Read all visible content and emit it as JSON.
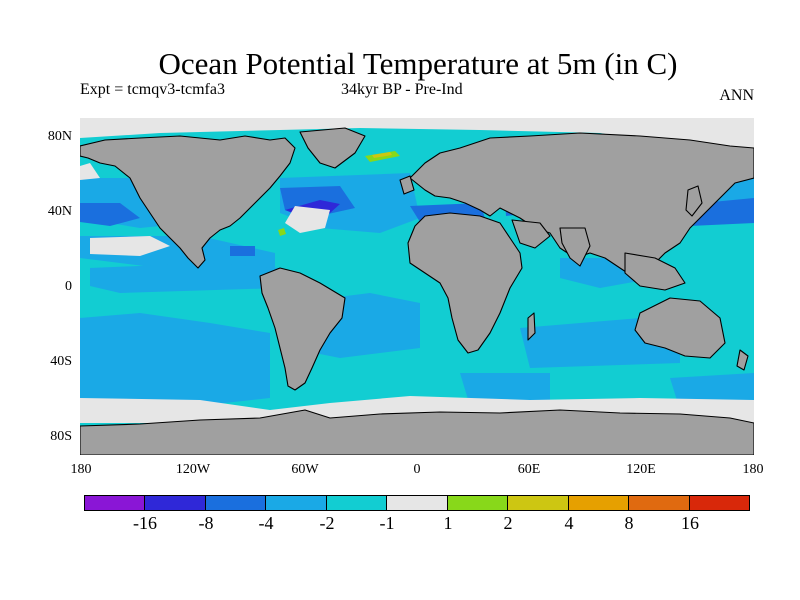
{
  "title": "Ocean Potential Temperature at 5m (in C)",
  "subtitle_left": "Expt = tcmqv3-tcmfa3",
  "subtitle_center": "34kyr BP - Pre-Ind",
  "subtitle_right": "ANN",
  "lat_labels": [
    "80N",
    "40N",
    "0",
    "40S",
    "80S"
  ],
  "lon_labels": [
    "180",
    "120W",
    "60W",
    "0",
    "60E",
    "120E",
    "180"
  ],
  "colorbar": {
    "colors": [
      "#8a16d6",
      "#2f28d8",
      "#1a6fde",
      "#1aa9e6",
      "#12cdd2",
      "#e6e6e6",
      "#88d81a",
      "#cdc612",
      "#e6a000",
      "#e06a10",
      "#d8280a"
    ],
    "labels": [
      "-16",
      "-8",
      "-4",
      "-2",
      "-1",
      "1",
      "2",
      "4",
      "8",
      "16"
    ]
  },
  "colors": {
    "land": "#a0a0a0",
    "ocean_base": "#12cdd2",
    "cool_light": "#1aa9e6",
    "cool_mid": "#1a6fde",
    "cool_strong": "#2f28d8",
    "neutral": "#e6e6e6",
    "warm": "#88d81a",
    "warm2": "#cdc612"
  }
}
